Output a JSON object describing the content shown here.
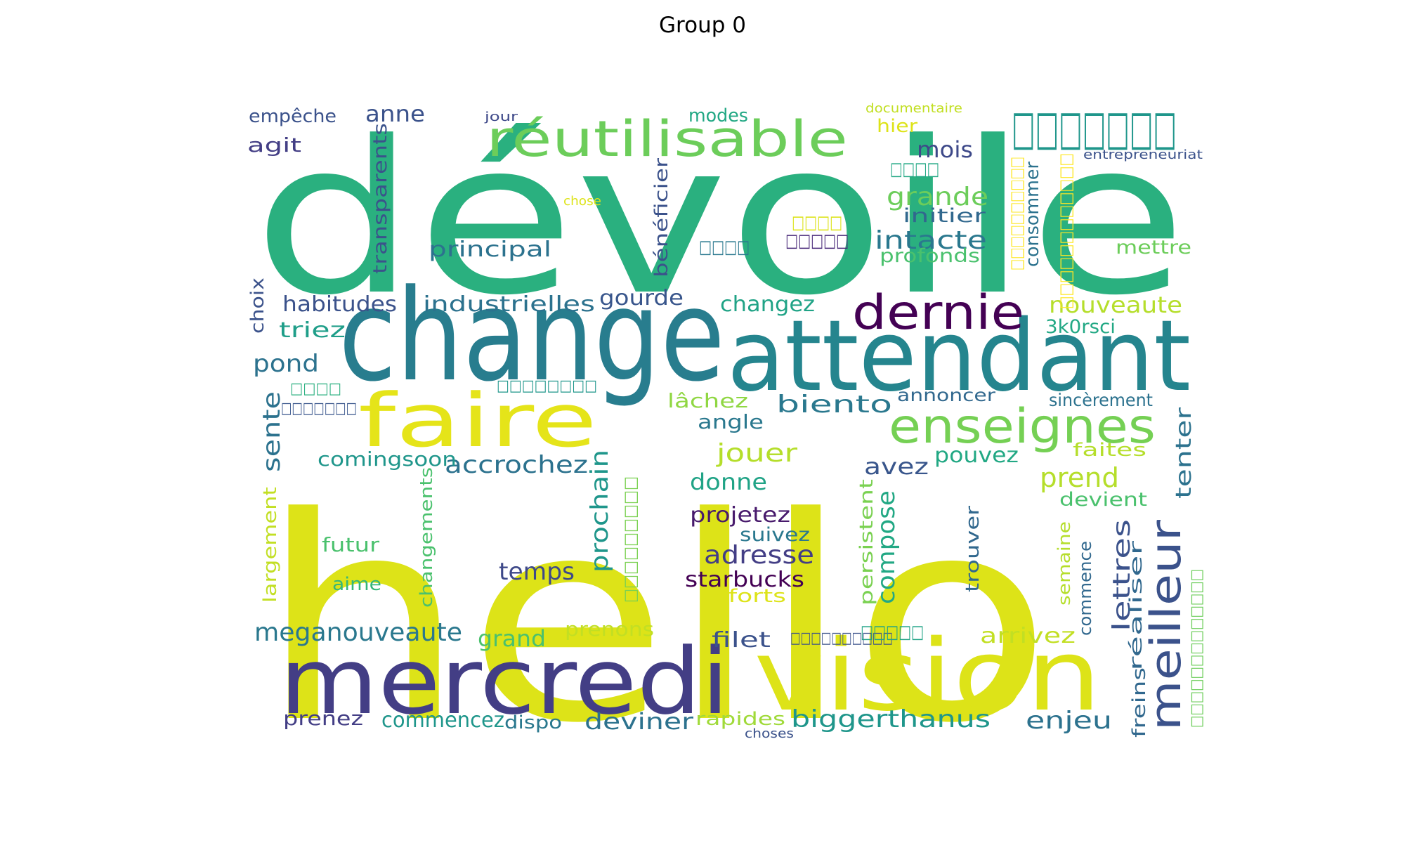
{
  "title": "Group 0",
  "words": [
    {
      "text": "dévoile",
      "color": "#2ab07f"
    },
    {
      "text": "hello",
      "color": "#dde318"
    },
    {
      "text": "change",
      "color": "#287d8e"
    },
    {
      "text": "attendant",
      "color": "#25858e"
    },
    {
      "text": "mercredi",
      "color": "#433e85"
    },
    {
      "text": "vision",
      "color": "#dde318"
    },
    {
      "text": "faire",
      "color": "#e5e419"
    },
    {
      "text": "réutilisable",
      "color": "#6ccd5a"
    },
    {
      "text": "enseignes",
      "color": "#75d054"
    },
    {
      "text": "meilleur",
      "color": "#3b528b"
    },
    {
      "text": "dernie",
      "color": "#440154"
    },
    {
      "text": "□□□□□□□",
      "color": "#1f968b"
    },
    {
      "text": "grande",
      "color": "#6ccd5a"
    },
    {
      "text": "intacte",
      "color": "#2a788e"
    },
    {
      "text": "mois",
      "color": "#3e4989"
    },
    {
      "text": "initier",
      "color": "#31688e"
    },
    {
      "text": "profonds",
      "color": "#4ac16d"
    },
    {
      "text": "mettre",
      "color": "#6ccd5a"
    },
    {
      "text": "principal",
      "color": "#2c728e"
    },
    {
      "text": "transparents",
      "color": "#3b528b"
    },
    {
      "text": "bénéficier",
      "color": "#3b528b"
    },
    {
      "text": "consommer",
      "color": "#2c728e"
    },
    {
      "text": "gourde",
      "color": "#39568c"
    },
    {
      "text": "industrielles",
      "color": "#2c728e"
    },
    {
      "text": "habitudes",
      "color": "#3b528b"
    },
    {
      "text": "changez",
      "color": "#20a386"
    },
    {
      "text": "nouveaute",
      "color": "#b5de2b"
    },
    {
      "text": "3k0rsci",
      "color": "#22a884"
    },
    {
      "text": "triez",
      "color": "#1f9e89"
    },
    {
      "text": "pond",
      "color": "#2c728e"
    },
    {
      "text": "choix",
      "color": "#3b528b"
    },
    {
      "text": "agit",
      "color": "#433e85"
    },
    {
      "text": "empêche",
      "color": "#3b528b"
    },
    {
      "text": "anne",
      "color": "#3b528b"
    },
    {
      "text": "jour",
      "color": "#3e4989"
    },
    {
      "text": "modes",
      "color": "#22a884"
    },
    {
      "text": "documentaire",
      "color": "#c2df23"
    },
    {
      "text": "hier",
      "color": "#dde318"
    },
    {
      "text": "entrepreneuriat",
      "color": "#3b528b"
    },
    {
      "text": "□□□□",
      "color": "#22a884"
    },
    {
      "text": "chose",
      "color": "#dde318"
    },
    {
      "text": "□□□□",
      "color": "#dde318"
    },
    {
      "text": "□□□□",
      "color": "#2a788e"
    },
    {
      "text": "□□□□□",
      "color": "#482878"
    },
    {
      "text": "□□□□□□□□□□",
      "color": "#fde725"
    },
    {
      "text": "□□□□□□□□□□□□",
      "color": "#fde725"
    },
    {
      "text": "bientо",
      "color": "#2a788e"
    },
    {
      "text": "lâchez",
      "color": "#90d743"
    },
    {
      "text": "angle",
      "color": "#2a788e"
    },
    {
      "text": "jouer",
      "color": "#b5de2b"
    },
    {
      "text": "donne",
      "color": "#20a386"
    },
    {
      "text": "avez",
      "color": "#39568c"
    },
    {
      "text": "pouvez",
      "color": "#22a884"
    },
    {
      "text": "annoncer",
      "color": "#31688e"
    },
    {
      "text": "sincèrement",
      "color": "#2c728e"
    },
    {
      "text": "faites",
      "color": "#b5de2b"
    },
    {
      "text": "tenter",
      "color": "#2c728e"
    },
    {
      "text": "prend",
      "color": "#b5de2b"
    },
    {
      "text": "devient",
      "color": "#4ac16d"
    },
    {
      "text": "accrochez",
      "color": "#2c728e"
    },
    {
      "text": "comingsoon",
      "color": "#1f968b"
    },
    {
      "text": "sente",
      "color": "#2c728e"
    },
    {
      "text": "□□□□",
      "color": "#29af7f"
    },
    {
      "text": "□□□□□□□",
      "color": "#39568c"
    },
    {
      "text": "□□□□□□□□",
      "color": "#1f968b"
    },
    {
      "text": "prochain",
      "color": "#1f968b"
    },
    {
      "text": "□□□□□□□□□",
      "color": "#7ad151"
    },
    {
      "text": "projetez",
      "color": "#481a6c"
    },
    {
      "text": "suivez",
      "color": "#2a788e"
    },
    {
      "text": "adresse",
      "color": "#433e85"
    },
    {
      "text": "starbucks",
      "color": "#440154"
    },
    {
      "text": "efforts",
      "color": "#dde318"
    },
    {
      "text": "temps",
      "color": "#3e4989"
    },
    {
      "text": "compose",
      "color": "#22a884"
    },
    {
      "text": "persistent",
      "color": "#7ad151"
    },
    {
      "text": "trouver",
      "color": "#31688e"
    },
    {
      "text": "lettres",
      "color": "#3b528b"
    },
    {
      "text": "semaine",
      "color": "#b5de2b"
    },
    {
      "text": "commence",
      "color": "#31688e"
    },
    {
      "text": "réaliser",
      "color": "#31688e"
    },
    {
      "text": "□□□□□□□□□□□□□",
      "color": "#6ccd5a"
    },
    {
      "text": "□□□□□□□□□□",
      "color": "#3b528b"
    },
    {
      "text": "largement",
      "color": "#c2df23"
    },
    {
      "text": "futur",
      "color": "#4ac16d"
    },
    {
      "text": "aime",
      "color": "#35b779"
    },
    {
      "text": "changements",
      "color": "#4ac16d"
    },
    {
      "text": "meganouveaute",
      "color": "#2a788e"
    },
    {
      "text": "grand",
      "color": "#4ac16d"
    },
    {
      "text": "prenons",
      "color": "#c2df23"
    },
    {
      "text": "filet",
      "color": "#3b528b"
    },
    {
      "text": "□□□□□",
      "color": "#20a386"
    },
    {
      "text": "arrivez",
      "color": "#c2df23"
    },
    {
      "text": "prenez",
      "color": "#433e85"
    },
    {
      "text": "commencez",
      "color": "#1f968b"
    },
    {
      "text": "dispo",
      "color": "#2a788e"
    },
    {
      "text": "deviner",
      "color": "#2c728e"
    },
    {
      "text": "rapides",
      "color": "#a0da39"
    },
    {
      "text": "choses",
      "color": "#3b528b"
    },
    {
      "text": "biggerthanus",
      "color": "#1f968b"
    },
    {
      "text": "enjeu",
      "color": "#2c728e"
    },
    {
      "text": "freins",
      "color": "#31688e"
    }
  ]
}
